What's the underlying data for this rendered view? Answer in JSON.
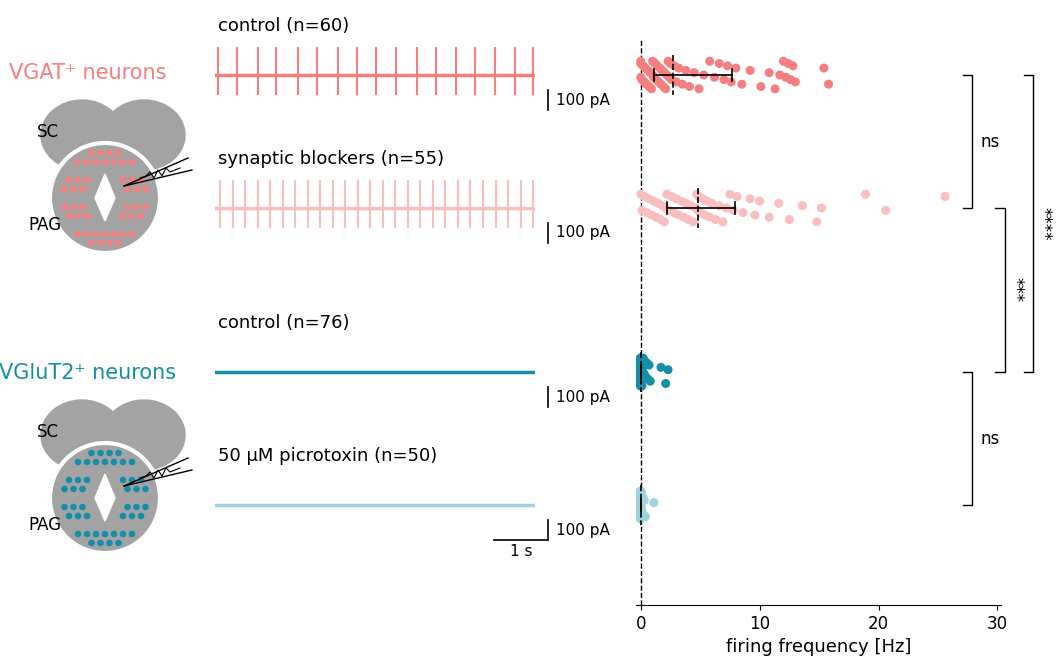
{
  "groups": [
    {
      "label": "VGAT⁺ neurons",
      "color": "#f37f7f",
      "regions": [
        "SC",
        "PAG"
      ],
      "series": [
        "control (n=60)",
        "synaptic blockers (n=55)"
      ]
    },
    {
      "label": "VGluT2⁺ neurons",
      "color": "#168ea8",
      "regions": [
        "SC",
        "PAG"
      ],
      "series": [
        "control (n=76)",
        "50 µM picrotoxin (n=50)"
      ]
    }
  ],
  "scalebars": {
    "current": {
      "value": 100,
      "label": "100 pA"
    },
    "time": {
      "value": 1,
      "label": "1 s"
    }
  },
  "trace_duration": 6,
  "spike_peak": 140,
  "spike_trough": -100,
  "chart_data": {
    "type": "strip",
    "xlabel": "firing frequency [Hz]",
    "xlim": [
      -0.4,
      30.3
    ],
    "xticks": [
      0,
      10,
      20,
      30
    ],
    "reference_line": 0,
    "series": [
      {
        "title": "control (n=60)",
        "color": "#f37f7f",
        "values": [
          0,
          0,
          0,
          0.1,
          0.2,
          0.3,
          0.4,
          0.5,
          0.6,
          0.7,
          0.8,
          0.9,
          1.0,
          1.0,
          1.1,
          1.2,
          1.3,
          1.4,
          1.5,
          1.6,
          1.7,
          1.8,
          1.9,
          2.0,
          2.1,
          2.2,
          2.3,
          2.4,
          2.5,
          2.6,
          2.8,
          3.0,
          3.2,
          3.5,
          3.8,
          4.1,
          4.5,
          4.9,
          5.3,
          5.8,
          6.2,
          6.6,
          7.0,
          7.3,
          7.6,
          8.0,
          8.5,
          9.2,
          10.1,
          10.8,
          11.3,
          11.7,
          12.0,
          12.2,
          12.4,
          12.6,
          12.8,
          13.0,
          15.4,
          15.8
        ],
        "median": 2.7,
        "iqr": [
          1.1,
          7.7
        ],
        "spike_times": [
          0.05,
          0.42,
          0.8,
          1.15,
          1.55,
          1.92,
          2.3,
          2.66,
          3.02,
          3.4,
          3.78,
          4.15,
          4.52,
          4.88,
          5.25,
          5.62,
          5.96
        ]
      },
      {
        "title": "synaptic blockers (n=55)",
        "color": "#f8bfbf",
        "values": [
          0,
          0.1,
          0.3,
          0.5,
          0.7,
          0.9,
          1.1,
          1.3,
          1.5,
          1.7,
          1.8,
          2.0,
          2.1,
          2.2,
          2.4,
          2.6,
          2.8,
          3.0,
          3.2,
          3.4,
          3.6,
          3.8,
          4.0,
          4.2,
          4.4,
          4.6,
          4.7,
          4.8,
          4.9,
          5.0,
          5.2,
          5.4,
          5.6,
          5.8,
          6.0,
          6.3,
          6.6,
          6.9,
          7.2,
          7.5,
          7.8,
          8.1,
          8.6,
          9.2,
          9.6,
          10.0,
          10.8,
          11.6,
          12.5,
          13.6,
          14.8,
          15.2,
          18.9,
          20.6,
          25.6
        ],
        "median": 4.8,
        "iqr": [
          2.2,
          7.9
        ],
        "spike_times": [
          0.1,
          0.33,
          0.56,
          0.8,
          1.03,
          1.27,
          1.5,
          1.74,
          1.97,
          2.21,
          2.44,
          2.68,
          2.91,
          3.15,
          3.38,
          3.62,
          3.85,
          4.09,
          4.32,
          4.56,
          4.79,
          5.03,
          5.26,
          5.5,
          5.73,
          5.96
        ]
      },
      {
        "title": "control (n=76)",
        "color": "#168ea8",
        "values": [
          0,
          0,
          0,
          0,
          0,
          0,
          0,
          0,
          0,
          0,
          0,
          0,
          0,
          0,
          0,
          0,
          0,
          0,
          0,
          0,
          0,
          0,
          0,
          0,
          0,
          0,
          0,
          0,
          0,
          0,
          0,
          0,
          0,
          0,
          0,
          0,
          0,
          0,
          0,
          0,
          0,
          0,
          0,
          0,
          0,
          0,
          0,
          0,
          0,
          0,
          0,
          0,
          0,
          0,
          0,
          0,
          0,
          0,
          0,
          0,
          0,
          0,
          0.1,
          0.1,
          0.2,
          0.2,
          0.3,
          0.3,
          0.4,
          0.5,
          0.6,
          0.7,
          0.8,
          1.7,
          2.1,
          2.3
        ],
        "median": 0,
        "iqr": [
          0,
          0
        ],
        "spike_times": []
      },
      {
        "title": "50 µM picrotoxin (n=50)",
        "color": "#9fd3df",
        "values": [
          0,
          0,
          0,
          0,
          0,
          0,
          0,
          0,
          0,
          0,
          0,
          0,
          0,
          0,
          0,
          0,
          0,
          0,
          0,
          0,
          0,
          0,
          0,
          0,
          0,
          0,
          0,
          0,
          0,
          0,
          0,
          0,
          0,
          0,
          0,
          0,
          0,
          0,
          0,
          0,
          0,
          0,
          0,
          0,
          0.1,
          0.2,
          0.2,
          0.3,
          0.4,
          1.1
        ],
        "median": 0,
        "iqr": [
          0,
          0
        ],
        "spike_times": []
      }
    ],
    "comparisons": [
      {
        "between": [
          "control (n=60)",
          "synaptic blockers (n=55)"
        ],
        "label": "ns"
      },
      {
        "between": [
          "control (n=76)",
          "50 µM picrotoxin (n=50)"
        ],
        "label": "ns"
      },
      {
        "between": [
          "synaptic blockers (n=55)",
          "control (n=76)"
        ],
        "label": "***"
      },
      {
        "between": [
          "control (n=60)",
          "control (n=76)"
        ],
        "label": "****"
      }
    ]
  }
}
